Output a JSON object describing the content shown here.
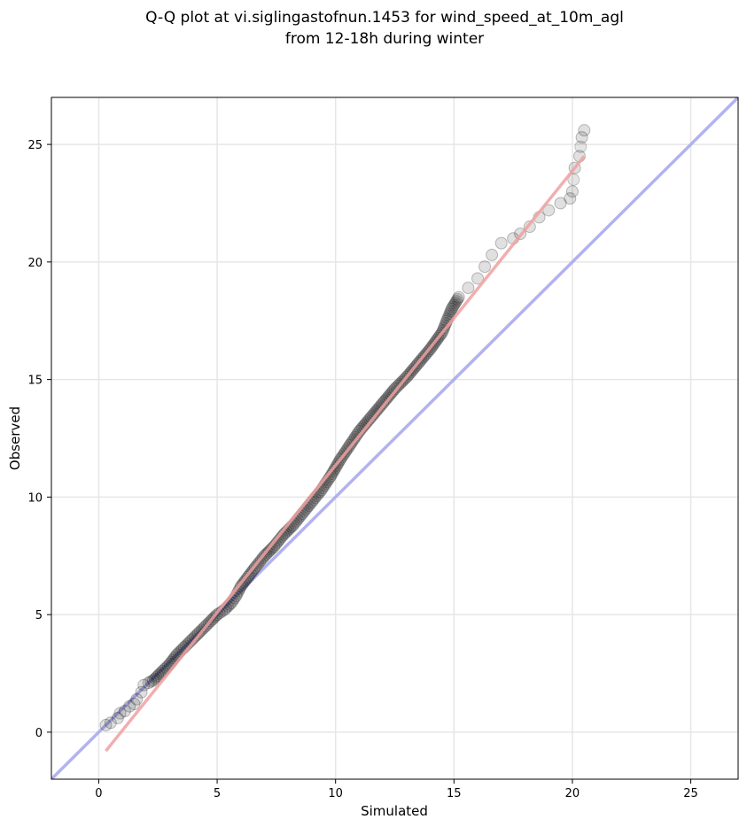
{
  "chart_data": {
    "type": "scatter",
    "title": "Q-Q plot at vi.siglingastofnun.1453 for wind_speed_at_10m_agl",
    "subtitle": "from 12-18h during winter",
    "xlabel": "Simulated",
    "ylabel": "Observed",
    "xlim": [
      -2,
      27
    ],
    "ylim": [
      -2,
      27
    ],
    "xticks": [
      0,
      5,
      10,
      15,
      20,
      25
    ],
    "yticks": [
      0,
      5,
      10,
      15,
      20,
      25
    ],
    "grid": true,
    "legend": "none",
    "reference_line": {
      "kind": "identity",
      "color": "#aaaaf0"
    },
    "fit_line": {
      "from": [
        0.3,
        -0.8
      ],
      "to": [
        20.5,
        24.5
      ],
      "color": "#f0a0a0"
    },
    "points_color": "#000000",
    "series": [
      {
        "values": [
          [
            0.3,
            0.3
          ],
          [
            0.5,
            0.4
          ],
          [
            0.8,
            0.6
          ],
          [
            0.9,
            0.8
          ],
          [
            1.1,
            0.9
          ],
          [
            1.3,
            1.1
          ],
          [
            1.5,
            1.2
          ],
          [
            1.6,
            1.4
          ],
          [
            1.8,
            1.7
          ],
          [
            1.9,
            2.0
          ],
          [
            2.1,
            2.1
          ],
          [
            2.3,
            2.2
          ],
          [
            2.5,
            2.4
          ],
          [
            2.7,
            2.6
          ],
          [
            3.0,
            2.9
          ],
          [
            3.3,
            3.3
          ],
          [
            3.6,
            3.6
          ],
          [
            3.9,
            3.9
          ],
          [
            4.2,
            4.2
          ],
          [
            4.5,
            4.5
          ],
          [
            4.8,
            4.8
          ],
          [
            5.0,
            5.0
          ],
          [
            5.3,
            5.2
          ],
          [
            5.6,
            5.5
          ],
          [
            5.8,
            5.8
          ],
          [
            6.0,
            6.2
          ],
          [
            6.3,
            6.6
          ],
          [
            6.6,
            7.0
          ],
          [
            7.0,
            7.5
          ],
          [
            7.4,
            7.9
          ],
          [
            7.8,
            8.4
          ],
          [
            8.2,
            8.8
          ],
          [
            8.6,
            9.3
          ],
          [
            9.0,
            9.8
          ],
          [
            9.4,
            10.3
          ],
          [
            9.8,
            10.9
          ],
          [
            10.2,
            11.6
          ],
          [
            10.6,
            12.2
          ],
          [
            11.0,
            12.8
          ],
          [
            11.5,
            13.4
          ],
          [
            12.0,
            14.0
          ],
          [
            12.5,
            14.6
          ],
          [
            13.0,
            15.1
          ],
          [
            13.5,
            15.7
          ],
          [
            14.0,
            16.3
          ],
          [
            14.5,
            17.0
          ],
          [
            14.7,
            17.5
          ],
          [
            14.9,
            18.0
          ],
          [
            15.2,
            18.5
          ],
          [
            15.6,
            18.9
          ],
          [
            16.0,
            19.3
          ],
          [
            16.3,
            19.8
          ],
          [
            16.6,
            20.3
          ],
          [
            17.0,
            20.8
          ],
          [
            17.5,
            21.0
          ],
          [
            17.8,
            21.2
          ],
          [
            18.2,
            21.5
          ],
          [
            18.6,
            21.9
          ],
          [
            19.0,
            22.2
          ],
          [
            19.5,
            22.5
          ],
          [
            19.9,
            22.7
          ],
          [
            20.0,
            23.0
          ],
          [
            20.1,
            24.0
          ],
          [
            20.3,
            24.5
          ],
          [
            20.4,
            25.3
          ],
          [
            20.5,
            25.6
          ]
        ]
      }
    ]
  }
}
